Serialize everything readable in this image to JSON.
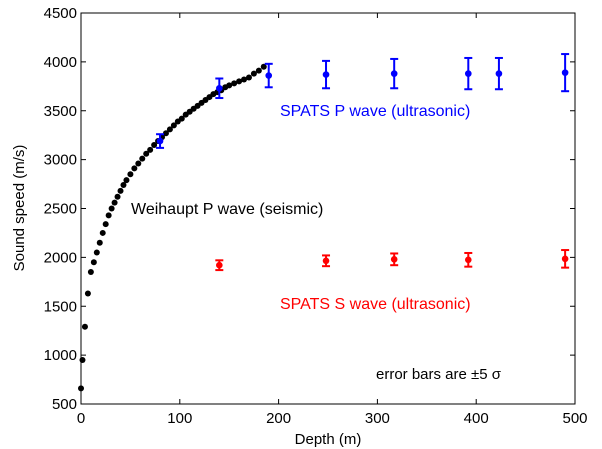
{
  "chart_data": {
    "type": "scatter",
    "xlabel": "Depth (m)",
    "ylabel": "Sound speed (m/s)",
    "xlim": [
      0,
      500
    ],
    "ylim": [
      500,
      4500
    ],
    "xticks": [
      0,
      100,
      200,
      300,
      400,
      500
    ],
    "yticks": [
      500,
      1000,
      1500,
      2000,
      2500,
      3000,
      3500,
      4000,
      4500
    ],
    "grid": false,
    "series": [
      {
        "name": "Weihaupt P wave (seismic)",
        "color": "#000000",
        "error_bars": false,
        "points": [
          [
            0,
            660
          ],
          [
            1.5,
            950
          ],
          [
            4,
            1290
          ],
          [
            7,
            1630
          ],
          [
            10,
            1850
          ],
          [
            13,
            1950
          ],
          [
            16,
            2050
          ],
          [
            19,
            2150
          ],
          [
            22,
            2250
          ],
          [
            25,
            2340
          ],
          [
            28,
            2430
          ],
          [
            31,
            2500
          ],
          [
            34,
            2560
          ],
          [
            37,
            2620
          ],
          [
            40,
            2680
          ],
          [
            43,
            2740
          ],
          [
            46,
            2790
          ],
          [
            50,
            2850
          ],
          [
            54,
            2910
          ],
          [
            58,
            2960
          ],
          [
            62,
            3010
          ],
          [
            66,
            3060
          ],
          [
            70,
            3100
          ],
          [
            74,
            3150
          ],
          [
            78,
            3190
          ],
          [
            82,
            3230
          ],
          [
            86,
            3270
          ],
          [
            90,
            3310
          ],
          [
            94,
            3350
          ],
          [
            98,
            3390
          ],
          [
            102,
            3420
          ],
          [
            106,
            3460
          ],
          [
            110,
            3490
          ],
          [
            114,
            3520
          ],
          [
            118,
            3550
          ],
          [
            122,
            3580
          ],
          [
            126,
            3610
          ],
          [
            130,
            3640
          ],
          [
            134,
            3670
          ],
          [
            138,
            3690
          ],
          [
            142,
            3710
          ],
          [
            146,
            3740
          ],
          [
            150,
            3760
          ],
          [
            155,
            3780
          ],
          [
            160,
            3800
          ],
          [
            165,
            3820
          ],
          [
            170,
            3840
          ],
          [
            175,
            3880
          ],
          [
            180,
            3910
          ],
          [
            185,
            3950
          ]
        ]
      },
      {
        "name": "SPATS P wave (ultrasonic)",
        "color": "#0000ff",
        "error_bars": true,
        "points": [
          {
            "x": 80,
            "y": 3190,
            "err": 70
          },
          {
            "x": 140,
            "y": 3730,
            "err": 100
          },
          {
            "x": 190,
            "y": 3860,
            "err": 120
          },
          {
            "x": 248,
            "y": 3870,
            "err": 140
          },
          {
            "x": 317,
            "y": 3880,
            "err": 150
          },
          {
            "x": 392,
            "y": 3880,
            "err": 160
          },
          {
            "x": 423,
            "y": 3880,
            "err": 160
          },
          {
            "x": 490,
            "y": 3890,
            "err": 190
          }
        ]
      },
      {
        "name": "SPATS S wave (ultrasonic)",
        "color": "#ff0000",
        "error_bars": true,
        "points": [
          {
            "x": 140,
            "y": 1920,
            "err": 50
          },
          {
            "x": 248,
            "y": 1965,
            "err": 55
          },
          {
            "x": 317,
            "y": 1980,
            "err": 60
          },
          {
            "x": 392,
            "y": 1975,
            "err": 70
          },
          {
            "x": 490,
            "y": 1985,
            "err": 90
          }
        ]
      }
    ],
    "annotations": {
      "weihaupt": "Weihaupt P wave (seismic)",
      "spats_p": "SPATS P wave (ultrasonic)",
      "spats_s": "SPATS S wave (ultrasonic)",
      "errorbars": "error bars are ±5 σ"
    }
  }
}
